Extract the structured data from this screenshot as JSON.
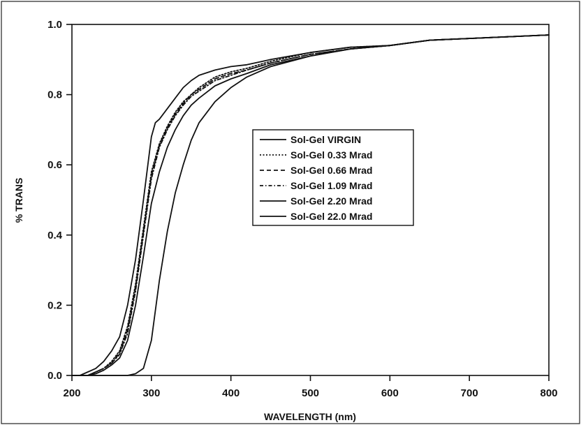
{
  "chart_data": {
    "type": "line",
    "title": "",
    "xlabel": "WAVELENGTH (nm)",
    "ylabel": "% TRANS",
    "xlim": [
      200,
      800
    ],
    "ylim": [
      0.0,
      1.0
    ],
    "x_ticks": [
      "200",
      "300",
      "400",
      "500",
      "600",
      "700",
      "800"
    ],
    "y_ticks": [
      "0.0",
      "0.2",
      "0.4",
      "0.6",
      "0.8",
      "1.0"
    ],
    "grid": false,
    "legend_position": "center-right",
    "series": [
      {
        "name": "Sol-Gel VIRGIN",
        "line_style": "solid",
        "x": [
          200,
          210,
          220,
          230,
          240,
          250,
          260,
          270,
          280,
          290,
          300,
          305,
          310,
          320,
          330,
          340,
          350,
          360,
          380,
          400,
          420,
          450,
          500,
          550,
          600,
          650,
          700,
          750,
          800
        ],
        "y": [
          0.0,
          0.0,
          0.01,
          0.02,
          0.04,
          0.07,
          0.11,
          0.2,
          0.33,
          0.5,
          0.68,
          0.72,
          0.73,
          0.76,
          0.79,
          0.82,
          0.84,
          0.855,
          0.87,
          0.88,
          0.885,
          0.9,
          0.92,
          0.935,
          0.94,
          0.955,
          0.96,
          0.965,
          0.97
        ]
      },
      {
        "name": "Sol-Gel 0.33 Mrad",
        "line_style": "dotted",
        "x": [
          200,
          210,
          220,
          230,
          240,
          250,
          260,
          270,
          280,
          290,
          300,
          310,
          320,
          330,
          340,
          350,
          360,
          380,
          400,
          420,
          450,
          500,
          550,
          600,
          650,
          700,
          750,
          800
        ],
        "y": [
          0.0,
          0.0,
          0.0,
          0.01,
          0.02,
          0.04,
          0.07,
          0.14,
          0.26,
          0.42,
          0.58,
          0.66,
          0.71,
          0.75,
          0.78,
          0.8,
          0.82,
          0.85,
          0.865,
          0.875,
          0.895,
          0.92,
          0.935,
          0.94,
          0.955,
          0.96,
          0.965,
          0.97
        ]
      },
      {
        "name": "Sol-Gel 0.66 Mrad",
        "line_style": "dashed",
        "x": [
          200,
          210,
          220,
          230,
          240,
          250,
          260,
          270,
          280,
          290,
          300,
          310,
          320,
          330,
          340,
          350,
          360,
          380,
          400,
          420,
          450,
          500,
          550,
          600,
          650,
          700,
          750,
          800
        ],
        "y": [
          0.0,
          0.0,
          0.0,
          0.01,
          0.02,
          0.035,
          0.065,
          0.13,
          0.25,
          0.41,
          0.57,
          0.655,
          0.705,
          0.745,
          0.775,
          0.8,
          0.815,
          0.845,
          0.86,
          0.87,
          0.89,
          0.915,
          0.93,
          0.94,
          0.955,
          0.96,
          0.965,
          0.97
        ]
      },
      {
        "name": "Sol-Gel 1.09 Mrad",
        "line_style": "dash-dot",
        "x": [
          200,
          210,
          220,
          230,
          240,
          250,
          260,
          270,
          280,
          290,
          300,
          310,
          320,
          330,
          340,
          350,
          360,
          380,
          400,
          420,
          450,
          500,
          550,
          600,
          650,
          700,
          750,
          800
        ],
        "y": [
          0.0,
          0.0,
          0.0,
          0.01,
          0.02,
          0.035,
          0.06,
          0.12,
          0.24,
          0.4,
          0.56,
          0.65,
          0.7,
          0.74,
          0.77,
          0.795,
          0.81,
          0.84,
          0.855,
          0.87,
          0.89,
          0.915,
          0.93,
          0.94,
          0.955,
          0.96,
          0.965,
          0.97
        ]
      },
      {
        "name": "Sol-Gel 2.20 Mrad",
        "line_style": "solid",
        "x": [
          200,
          210,
          220,
          230,
          240,
          250,
          260,
          270,
          280,
          290,
          300,
          310,
          320,
          330,
          340,
          350,
          360,
          380,
          400,
          420,
          450,
          500,
          550,
          600,
          650,
          700,
          750,
          800
        ],
        "y": [
          0.0,
          0.0,
          0.0,
          0.005,
          0.015,
          0.03,
          0.05,
          0.1,
          0.2,
          0.34,
          0.49,
          0.58,
          0.65,
          0.7,
          0.74,
          0.77,
          0.79,
          0.825,
          0.845,
          0.86,
          0.885,
          0.91,
          0.93,
          0.94,
          0.955,
          0.96,
          0.965,
          0.97
        ]
      },
      {
        "name": "Sol-Gel 22.0 Mrad",
        "line_style": "solid",
        "x": [
          200,
          250,
          270,
          280,
          290,
          300,
          310,
          320,
          330,
          340,
          350,
          360,
          380,
          400,
          420,
          450,
          500,
          550,
          600,
          650,
          700,
          750,
          800
        ],
        "y": [
          0.0,
          0.0,
          0.0,
          0.005,
          0.02,
          0.1,
          0.27,
          0.41,
          0.52,
          0.6,
          0.67,
          0.72,
          0.78,
          0.82,
          0.85,
          0.88,
          0.91,
          0.93,
          0.94,
          0.955,
          0.96,
          0.965,
          0.97
        ]
      }
    ]
  }
}
